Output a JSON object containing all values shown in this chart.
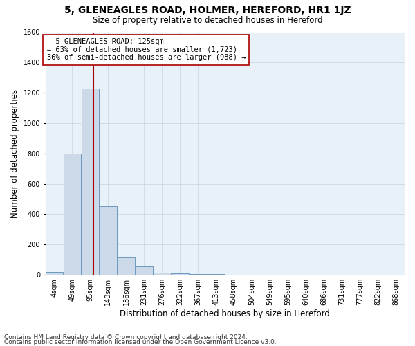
{
  "title": "5, GLENEAGLES ROAD, HOLMER, HEREFORD, HR1 1JZ",
  "subtitle": "Size of property relative to detached houses in Hereford",
  "xlabel": "Distribution of detached houses by size in Hereford",
  "ylabel": "Number of detached properties",
  "footer_line1": "Contains HM Land Registry data © Crown copyright and database right 2024.",
  "footer_line2": "Contains public sector information licensed under the Open Government Licence v3.0.",
  "annotation_line1": "  5 GLENEAGLES ROAD: 125sqm  ",
  "annotation_line2": "← 63% of detached houses are smaller (1,723)",
  "annotation_line3": "36% of semi-detached houses are larger (988) →",
  "bar_color": "#ccd9e8",
  "bar_edge_color": "#5b8db8",
  "vline_color": "#aa0000",
  "vline_x": 125,
  "bin_edges": [
    4,
    49,
    95,
    140,
    186,
    231,
    276,
    322,
    367,
    413,
    458,
    504,
    549,
    595,
    640,
    686,
    731,
    777,
    822,
    868,
    913
  ],
  "bar_heights": [
    20,
    800,
    1230,
    450,
    115,
    55,
    15,
    10,
    5,
    3,
    1,
    0,
    0,
    0,
    0,
    0,
    0,
    0,
    0,
    0
  ],
  "ylim": [
    0,
    1600
  ],
  "yticks": [
    0,
    200,
    400,
    600,
    800,
    1000,
    1200,
    1400,
    1600
  ],
  "xlim_left": 4,
  "xlim_right": 913,
  "grid_color": "#c8d4e3",
  "background_color": "#e8f0f8",
  "title_fontsize": 10,
  "subtitle_fontsize": 8.5,
  "axis_label_fontsize": 8.5,
  "tick_fontsize": 7,
  "annotation_fontsize": 7.5,
  "footer_fontsize": 6.5
}
